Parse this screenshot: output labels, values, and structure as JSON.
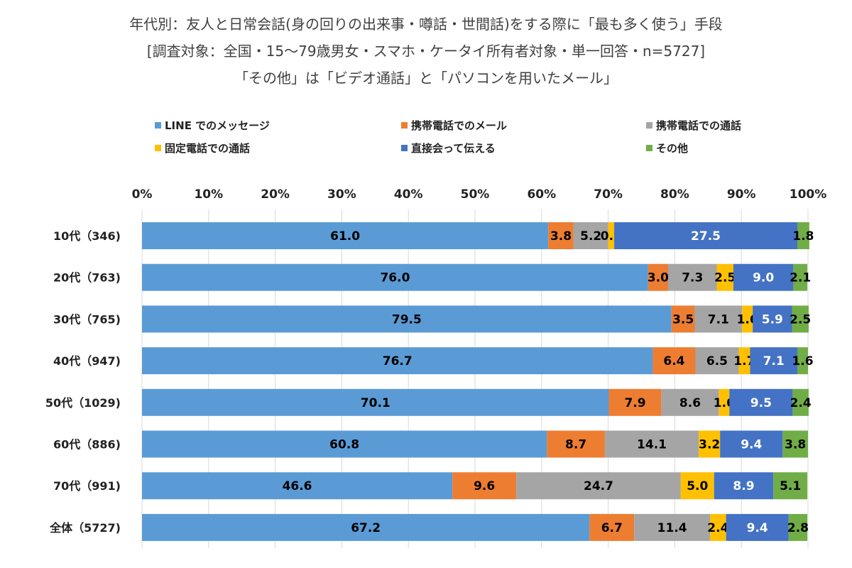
{
  "chart_data": {
    "type": "bar",
    "orientation": "horizontal",
    "stacked": "percent",
    "title": "年代別：友人と日常会話(身の回りの出来事・噂話・世間話)をする際に「最も多く使う」手段",
    "subtitle": "[調査対象：全国・15～79歳男女・スマホ・ケータイ所有者対象・単一回答・n=5727]",
    "note": "「その他」は「ビデオ通話」と「パソコンを用いたメール」",
    "xlim": [
      0,
      100
    ],
    "xticks": [
      "0%",
      "10%",
      "20%",
      "30%",
      "40%",
      "50%",
      "60%",
      "70%",
      "80%",
      "90%",
      "100%"
    ],
    "grid": "vertical",
    "legend_position": "top",
    "categories": [
      "10代（346)",
      "20代（763)",
      "30代（765)",
      "40代（947)",
      "50代（1029)",
      "60代（886)",
      "70代（991)",
      "全体（5727)"
    ],
    "series": [
      {
        "name": "LINE でのメッセージ",
        "color": "#5B9BD5",
        "label_color": "#000000",
        "values": [
          61.0,
          76.0,
          79.5,
          76.7,
          70.1,
          60.8,
          46.6,
          67.2
        ]
      },
      {
        "name": "携帯電話でのメール",
        "color": "#ED7D31",
        "label_color": "#000000",
        "values": [
          3.8,
          3.0,
          3.5,
          6.4,
          7.9,
          8.7,
          9.6,
          6.7
        ]
      },
      {
        "name": "携帯電話での通話",
        "color": "#A5A5A5",
        "label_color": "#000000",
        "values": [
          5.2,
          7.3,
          7.1,
          6.5,
          8.6,
          14.1,
          24.7,
          11.4
        ]
      },
      {
        "name": "固定電話での通話",
        "color": "#FFC000",
        "label_color": "#000000",
        "values": [
          0.9,
          2.5,
          1.6,
          1.7,
          1.6,
          3.2,
          5.0,
          2.4
        ]
      },
      {
        "name": "直接会って伝える",
        "color": "#4472C4",
        "label_color": "#FFFFFF",
        "values": [
          27.5,
          9.0,
          5.9,
          7.1,
          9.5,
          9.4,
          8.9,
          9.4
        ]
      },
      {
        "name": "その他",
        "color": "#70AD47",
        "label_color": "#000000",
        "values": [
          1.8,
          2.1,
          2.5,
          1.6,
          2.4,
          3.8,
          5.1,
          2.8
        ]
      }
    ]
  }
}
